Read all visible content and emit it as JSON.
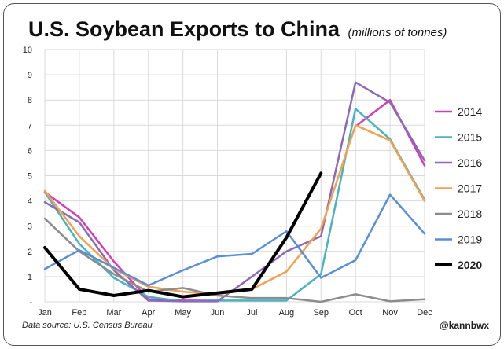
{
  "chart_data": {
    "type": "line",
    "title": "U.S. Soybean Exports to China",
    "subtitle": "(millions of tonnes)",
    "xlabel": "",
    "ylabel": "",
    "categories": [
      "Jan",
      "Feb",
      "Mar",
      "Apr",
      "May",
      "Jun",
      "Jul",
      "Aug",
      "Sep",
      "Oct",
      "Nov",
      "Dec"
    ],
    "ylim": [
      0,
      10
    ],
    "yticks": [
      "-",
      "1",
      "2",
      "3",
      "4",
      "5",
      "6",
      "7",
      "8",
      "9",
      "10"
    ],
    "grid": true,
    "legend_position": "right",
    "series": [
      {
        "name": "2014",
        "color": "#d63cb4",
        "width": 2.5,
        "values": [
          4.35,
          3.35,
          1.6,
          0.1,
          0.05,
          0.05,
          null,
          null,
          null,
          6.95,
          8.0,
          5.4
        ]
      },
      {
        "name": "2015",
        "color": "#4ab3c1",
        "width": 2.5,
        "values": [
          4.35,
          2.3,
          0.95,
          0.2,
          0.02,
          0.05,
          0.05,
          0.05,
          1.1,
          7.65,
          6.45,
          4.05
        ]
      },
      {
        "name": "2016",
        "color": "#8c69b8",
        "width": 2.5,
        "values": [
          3.95,
          3.15,
          1.25,
          0.05,
          0.02,
          0.02,
          1.0,
          2.0,
          2.6,
          8.7,
          7.9,
          5.6
        ]
      },
      {
        "name": "2017",
        "color": "#f4a04e",
        "width": 2.5,
        "values": [
          4.4,
          2.6,
          1.3,
          0.6,
          0.4,
          0.3,
          0.5,
          1.2,
          2.9,
          7.0,
          6.4,
          4.0
        ]
      },
      {
        "name": "2018",
        "color": "#8c8c8c",
        "width": 2.5,
        "values": [
          3.3,
          2.0,
          1.1,
          0.4,
          0.55,
          0.25,
          0.15,
          0.15,
          0.0,
          0.3,
          0.02,
          0.1
        ]
      },
      {
        "name": "2019",
        "color": "#5a8fd6",
        "width": 2.5,
        "values": [
          1.3,
          2.05,
          1.35,
          0.65,
          1.25,
          1.8,
          1.9,
          2.8,
          0.95,
          1.65,
          4.25,
          2.7
        ]
      },
      {
        "name": "2020",
        "color": "#000000",
        "width": 4,
        "values": [
          2.15,
          0.5,
          0.25,
          0.45,
          0.2,
          0.35,
          0.5,
          2.55,
          5.1,
          null,
          null,
          null
        ]
      }
    ]
  },
  "footer": {
    "source": "Data source: U.S. Census Bureau",
    "handle": "@kannbwx"
  }
}
